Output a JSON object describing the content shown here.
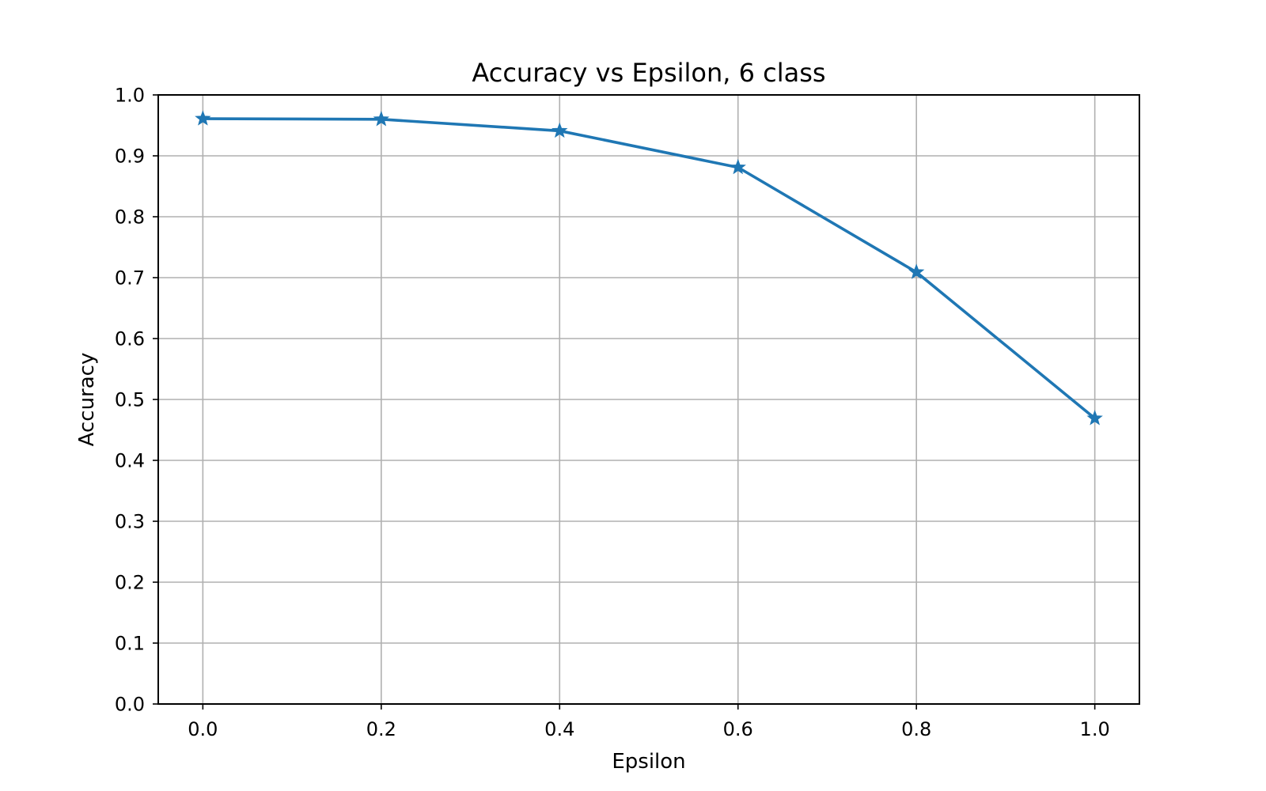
{
  "chart_data": {
    "type": "line",
    "title": "Accuracy vs Epsilon, 6 class",
    "xlabel": "Epsilon",
    "ylabel": "Accuracy",
    "xlim": [
      -0.05,
      1.05
    ],
    "ylim": [
      0.0,
      1.0
    ],
    "x_ticks": [
      "0.0",
      "0.2",
      "0.4",
      "0.6",
      "0.8",
      "1.0"
    ],
    "y_ticks": [
      "0.0",
      "0.1",
      "0.2",
      "0.3",
      "0.4",
      "0.5",
      "0.6",
      "0.7",
      "0.8",
      "0.9",
      "1.0"
    ],
    "grid": true,
    "series": [
      {
        "marker": "star",
        "color": "#1f77b4",
        "x": [
          0.0,
          0.2,
          0.4,
          0.6,
          0.8,
          1.0
        ],
        "y": [
          0.961,
          0.96,
          0.941,
          0.881,
          0.709,
          0.469
        ]
      }
    ]
  }
}
